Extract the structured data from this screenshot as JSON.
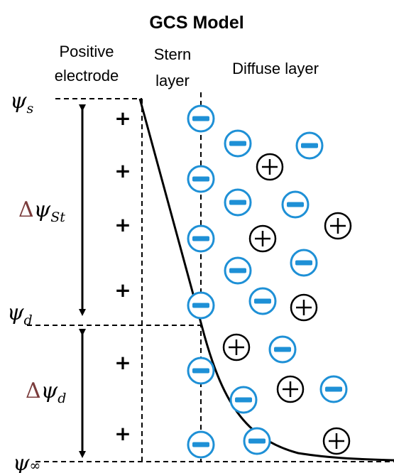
{
  "title": "GCS Model",
  "regions": {
    "positive_electrode": [
      "Positive",
      "electrode"
    ],
    "stern_layer": [
      "Stern",
      "layer"
    ],
    "diffuse_layer": "Diffuse layer"
  },
  "potentials": {
    "psi_s": {
      "symbol": "ψ",
      "sub": "s"
    },
    "psi_d": {
      "symbol": "ψ",
      "sub": "d"
    },
    "psi_inf": {
      "symbol": "ψ",
      "sub": "∞"
    }
  },
  "potential_drops": {
    "stern": {
      "delta": "Δ",
      "symbol": "ψ",
      "sub": "St"
    },
    "diffuse": {
      "delta": "Δ",
      "symbol": "ψ",
      "sub": "d"
    }
  },
  "electrode_charge": "+",
  "colors": {
    "anion": "#1e90d6",
    "cation": "#000000",
    "curve": "#000000",
    "delta": "#7a3b3b"
  }
}
